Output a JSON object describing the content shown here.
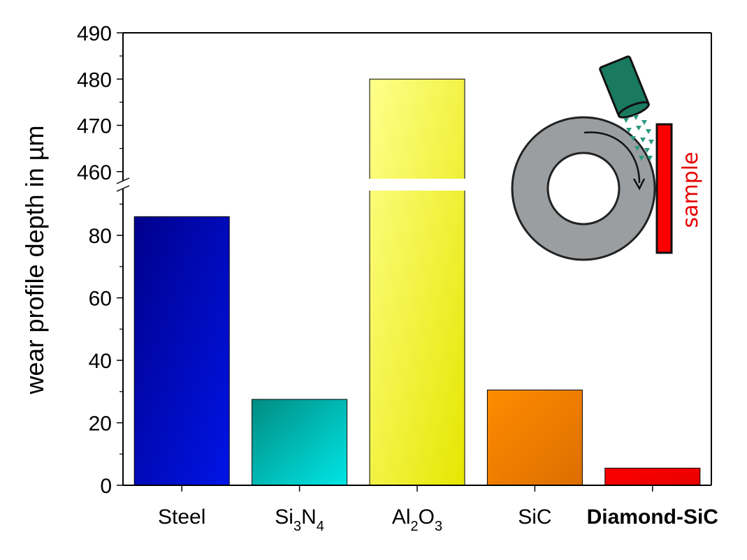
{
  "chart_data": {
    "type": "bar",
    "categories": [
      {
        "base": "Steel",
        "sub": [],
        "bold": false
      },
      {
        "base": "Si",
        "sub": [
          {
            "t": "3",
            "s": true
          },
          {
            "t": "N",
            "s": false
          },
          {
            "t": "4",
            "s": true
          }
        ],
        "bold": false
      },
      {
        "base": "Al",
        "sub": [
          {
            "t": "2",
            "s": true
          },
          {
            "t": "O",
            "s": false
          },
          {
            "t": "3",
            "s": true
          }
        ],
        "bold": false
      },
      {
        "base": "SiC",
        "sub": [],
        "bold": false
      },
      {
        "base": "Diamond-SiC",
        "sub": [],
        "bold": true
      }
    ],
    "values": [
      86,
      27.5,
      480,
      30.5,
      5.5
    ],
    "bar_gradients": [
      [
        "#00008c",
        "#0014e6"
      ],
      [
        "#008c82",
        "#00e6e6"
      ],
      [
        "#ffff8c",
        "#e6e600"
      ],
      [
        "#ff8c00",
        "#dc6e00"
      ],
      [
        "#ff0000",
        "#e60000"
      ]
    ],
    "ylabel": "wear profile depth in µm",
    "y_axis_lower": {
      "range": [
        0,
        95
      ],
      "ticks": [
        0,
        20,
        40,
        60,
        80
      ],
      "minor_step": 10
    },
    "y_axis_upper": {
      "range": [
        458,
        490
      ],
      "ticks": [
        460,
        470,
        480,
        490
      ],
      "minor_step": 5
    },
    "axis_break": true
  },
  "inset": {
    "sample_label": "sample",
    "colors": {
      "wheel": "#9a9ea0",
      "nozzle": "#1a7a60",
      "particles": "#2a9a80",
      "sample": "#ff0000",
      "label": "#e60000"
    }
  }
}
